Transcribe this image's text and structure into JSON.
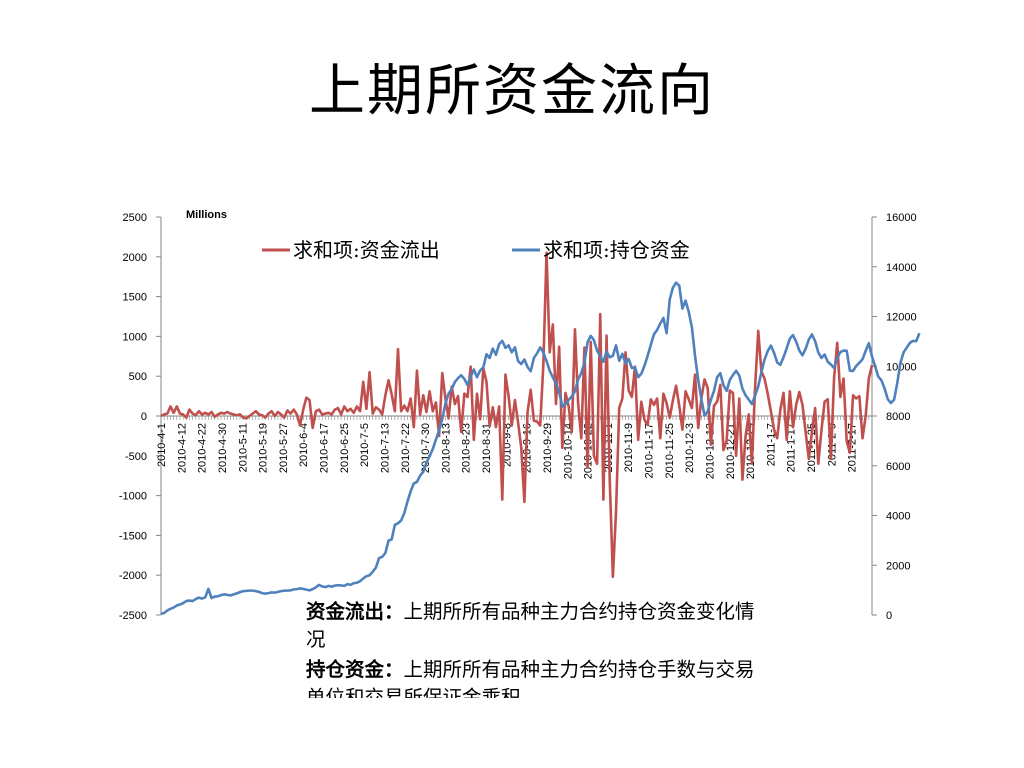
{
  "slide": {
    "title": "上期所资金流向"
  },
  "notes": [
    {
      "term": "资金流出：",
      "text": "上期所所有品种主力合约持仓资金变化情况"
    },
    {
      "term": "持仓资金：",
      "text": "上期所所有品种主力合约持仓手数与交易单位和交易所保证金乘积"
    }
  ],
  "chart_data": {
    "type": "line",
    "units_label": "Millions",
    "y_left": {
      "min": -2500,
      "max": 2500,
      "ticks": [
        2500,
        2000,
        1500,
        1000,
        500,
        0,
        -500,
        -1000,
        -1500,
        -2000,
        -2500
      ]
    },
    "y_right": {
      "min": 0,
      "max": 16000,
      "ticks": [
        16000,
        14000,
        12000,
        10000,
        8000,
        6000,
        4000,
        2000,
        0
      ]
    },
    "x_tick_labels": [
      "2010-4-1",
      "2010-4-12",
      "2010-4-22",
      "2010-4-30",
      "2010-5-11",
      "2010-5-19",
      "2010-5-27",
      "2010-6-4",
      "2010-6-17",
      "2010-6-25",
      "2010-7-5",
      "2010-7-13",
      "2010-7-22",
      "2010-7-30",
      "2010-8-13",
      "2010-8-23",
      "2010-8-31",
      "2010-9-8",
      "2010-9-16",
      "2010-9-29",
      "2010-10-14",
      "2010-10-22",
      "2010-11-1",
      "2010-11-9",
      "2010-11-17",
      "2010-11-25",
      "2010-12-3",
      "2010-12-13",
      "2010-12-21",
      "2010-12-29",
      "2011-1-7",
      "2011-1-17",
      "2011-1-25",
      "2011-2-9",
      "2011-2-17"
    ],
    "legend_position": "top",
    "series": [
      {
        "name": "求和项:资金流出",
        "axis": "left",
        "color": "#c0504d",
        "values": [
          0,
          20,
          30,
          120,
          40,
          120,
          30,
          20,
          -20,
          80,
          30,
          10,
          60,
          20,
          40,
          20,
          50,
          -10,
          20,
          40,
          30,
          50,
          30,
          20,
          10,
          20,
          -20,
          -30,
          0,
          30,
          60,
          20,
          10,
          -20,
          30,
          60,
          0,
          50,
          20,
          -20,
          70,
          30,
          80,
          20,
          -120,
          80,
          230,
          200,
          -150,
          60,
          80,
          20,
          30,
          40,
          20,
          80,
          100,
          20,
          120,
          60,
          90,
          40,
          120,
          60,
          430,
          90,
          550,
          30,
          110,
          80,
          20,
          260,
          450,
          270,
          60,
          840,
          60,
          130,
          60,
          220,
          -140,
          570,
          20,
          260,
          50,
          310,
          60,
          170,
          -250,
          540,
          220,
          -30,
          370,
          150,
          250,
          -200,
          280,
          240,
          620,
          -300,
          280,
          -40,
          600,
          430,
          -130,
          110,
          -140,
          120,
          -1050,
          520,
          250,
          -120,
          200,
          -80,
          -400,
          -1080,
          50,
          330,
          -60,
          -70,
          -120,
          650,
          2050,
          800,
          1150,
          150,
          870,
          -400,
          290,
          120,
          -200,
          1090,
          160,
          -280,
          860,
          -650,
          930,
          -500,
          -600,
          1280,
          -1050,
          1010,
          -800,
          -2020,
          -1200,
          100,
          220,
          800,
          320,
          240,
          620,
          -300,
          180,
          -50,
          -110,
          210,
          140,
          220,
          -280,
          280,
          160,
          -20,
          200,
          380,
          130,
          -170,
          310,
          210,
          100,
          520,
          -150,
          220,
          460,
          350,
          -360,
          130,
          180,
          390,
          -430,
          -310,
          320,
          290,
          -500,
          220,
          -800,
          -250,
          20,
          -600,
          360,
          1070,
          560,
          470,
          280,
          60,
          -170,
          -280,
          80,
          290,
          -300,
          310,
          -140,
          140,
          300,
          140,
          -200,
          -540,
          -200,
          100,
          -600,
          -180,
          180,
          210,
          -540,
          480,
          920,
          240,
          470,
          -320,
          -460,
          260,
          220,
          250,
          -280,
          0,
          470,
          640
        ]
      },
      {
        "name": "求和项:持仓资金",
        "axis": "right",
        "color": "#4f81bd",
        "values": [
          50,
          80,
          180,
          250,
          300,
          380,
          420,
          480,
          560,
          580,
          560,
          640,
          700,
          660,
          710,
          1050,
          680,
          740,
          750,
          800,
          830,
          810,
          790,
          830,
          870,
          920,
          960,
          970,
          980,
          980,
          960,
          930,
          880,
          860,
          880,
          910,
          900,
          930,
          960,
          980,
          980,
          990,
          1030,
          1040,
          1070,
          1050,
          1020,
          990,
          1040,
          1110,
          1210,
          1150,
          1120,
          1170,
          1140,
          1180,
          1200,
          1190,
          1170,
          1240,
          1210,
          1280,
          1300,
          1360,
          1470,
          1560,
          1600,
          1740,
          1900,
          2290,
          2340,
          2490,
          2990,
          3040,
          3620,
          3690,
          3800,
          4100,
          4560,
          4970,
          5290,
          5350,
          5600,
          5760,
          6120,
          6380,
          6670,
          7050,
          7420,
          7880,
          8500,
          8900,
          9080,
          9370,
          9520,
          9640,
          9490,
          9240,
          9580,
          9870,
          9560,
          9830,
          9960,
          10480,
          10330,
          10710,
          10460,
          10890,
          11020,
          10740,
          10840,
          10560,
          10760,
          10210,
          10090,
          10270,
          9970,
          9800,
          10330,
          10520,
          10760,
          10550,
          10210,
          9820,
          9550,
          9320,
          8970,
          8380,
          8480,
          8650,
          8790,
          8990,
          9470,
          9720,
          10150,
          10970,
          11220,
          11050,
          10630,
          10400,
          10180,
          10590,
          10360,
          10420,
          10840,
          10220,
          10500,
          10110,
          10290,
          9930,
          9950,
          9560,
          9700,
          10020,
          10420,
          10860,
          11280,
          11460,
          11720,
          11940,
          11330,
          12690,
          13160,
          13360,
          13240,
          12320,
          12640,
          12190,
          11570,
          10420,
          9450,
          8680,
          8020,
          8180,
          8650,
          9010,
          9560,
          9720,
          9230,
          9010,
          9450,
          9650,
          9820,
          9620,
          9100,
          8830,
          8660,
          8480,
          8820,
          9190,
          9760,
          10270,
          10610,
          10830,
          10540,
          10150,
          10060,
          10360,
          10720,
          11110,
          11250,
          10990,
          10630,
          10440,
          10700,
          11070,
          11280,
          11010,
          10560,
          10330,
          10470,
          10180,
          10070,
          9930,
          10330,
          10570,
          10630,
          10620,
          9820,
          9810,
          10010,
          10140,
          10280,
          10620,
          10930,
          10390,
          10000,
          9580,
          9430,
          9100,
          8670,
          8520,
          8660,
          9330,
          10140,
          10560,
          10750,
          10940,
          11020,
          11010,
          11330
        ]
      }
    ]
  }
}
